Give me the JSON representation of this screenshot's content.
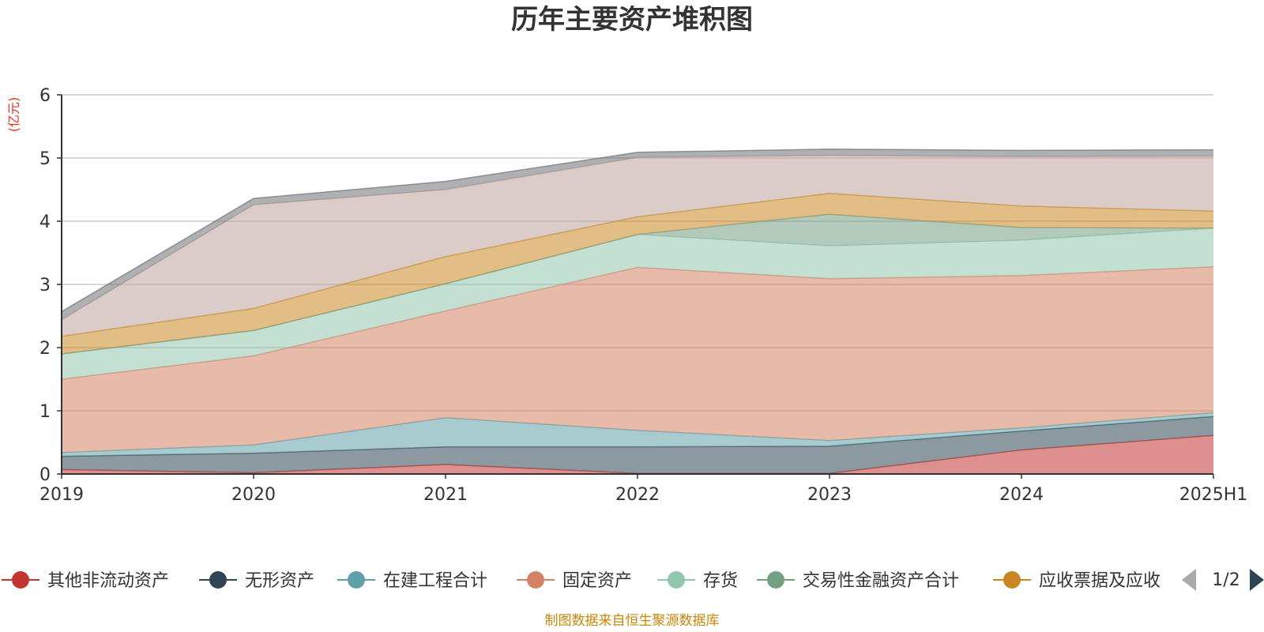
{
  "chart_data": {
    "type": "area",
    "stacked": true,
    "title": "历年主要资产堆积图",
    "ylabel": "(亿元)",
    "ylabel_color": "#e8331a",
    "ylim": [
      0,
      6
    ],
    "yticks": [
      "0",
      "1",
      "2",
      "3",
      "4",
      "5",
      "6"
    ],
    "grid": true,
    "categories": [
      "2019",
      "2020",
      "2021",
      "2022",
      "2023",
      "2024",
      "2025H1"
    ],
    "series": [
      {
        "name": "其他非流动资产",
        "color": "#c23531",
        "values": [
          0.07,
          0.02,
          0.15,
          0.01,
          0.01,
          0.38,
          0.61
        ]
      },
      {
        "name": "无形资产",
        "color": "#2f4554",
        "values": [
          0.21,
          0.31,
          0.28,
          0.42,
          0.43,
          0.3,
          0.3
        ]
      },
      {
        "name": "在建工程合计",
        "color": "#61a0a8",
        "values": [
          0.06,
          0.13,
          0.46,
          0.26,
          0.09,
          0.05,
          0.06
        ]
      },
      {
        "name": "固定资产",
        "color": "#d48265",
        "values": [
          1.16,
          1.41,
          1.69,
          2.58,
          2.56,
          2.41,
          2.31
        ]
      },
      {
        "name": "存货",
        "color": "#91c7ae",
        "values": [
          0.4,
          0.4,
          0.43,
          0.52,
          0.52,
          0.56,
          0.61
        ]
      },
      {
        "name": "交易性金融资产合计",
        "color": "#749f83",
        "values": [
          0.0,
          0.0,
          0.0,
          0.0,
          0.5,
          0.2,
          0.0
        ]
      },
      {
        "name": "应收票据及应收",
        "color": "#ca8622",
        "values": [
          0.28,
          0.35,
          0.43,
          0.28,
          0.33,
          0.34,
          0.27
        ]
      },
      {
        "name": "",
        "color": "#bda29a",
        "values": [
          0.26,
          1.64,
          1.06,
          0.94,
          0.6,
          0.78,
          0.87
        ]
      },
      {
        "name": "",
        "color": "#6e7074",
        "values": [
          0.13,
          0.1,
          0.13,
          0.08,
          0.1,
          0.1,
          0.1
        ]
      }
    ],
    "legend": {
      "placement": "bottom",
      "page": "1/2",
      "visible_count": 7
    },
    "footer": "制图数据来自恒生聚源数据库",
    "footer_color": "#c8860a"
  }
}
